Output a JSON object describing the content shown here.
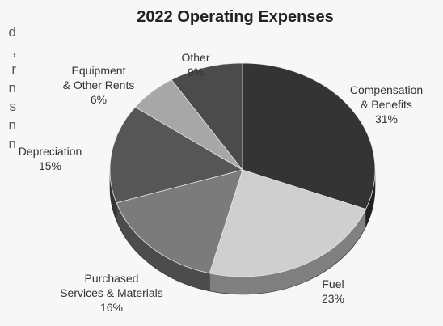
{
  "left_fragments": [
    "d",
    ",",
    "r",
    "n",
    "s",
    "n",
    "n"
  ],
  "chart_data": {
    "type": "pie",
    "title": "2022 Operating Expenses",
    "categories": [
      "Compensation & Benefits",
      "Fuel",
      "Purchased Services & Materials",
      "Depreciation",
      "Equipment & Other Rents",
      "Other"
    ],
    "values": [
      31,
      23,
      16,
      15,
      6,
      9
    ],
    "labels": [
      {
        "lines": [
          "Compensation",
          "& Benefits"
        ],
        "pct": "31%"
      },
      {
        "lines": [
          "Fuel"
        ],
        "pct": "23%"
      },
      {
        "lines": [
          "Purchased",
          "Services & Materials"
        ],
        "pct": "16%"
      },
      {
        "lines": [
          "Depreciation"
        ],
        "pct": "15%"
      },
      {
        "lines": [
          "Equipment",
          "& Other Rents"
        ],
        "pct": "6%"
      },
      {
        "lines": [
          "Other"
        ],
        "pct": "9%"
      }
    ],
    "colors": [
      "#343434",
      "#cfcfcf",
      "#7b7b7b",
      "#565656",
      "#a7a7a7",
      "#4b4b4b"
    ],
    "style": "3d-tilted-pie"
  }
}
